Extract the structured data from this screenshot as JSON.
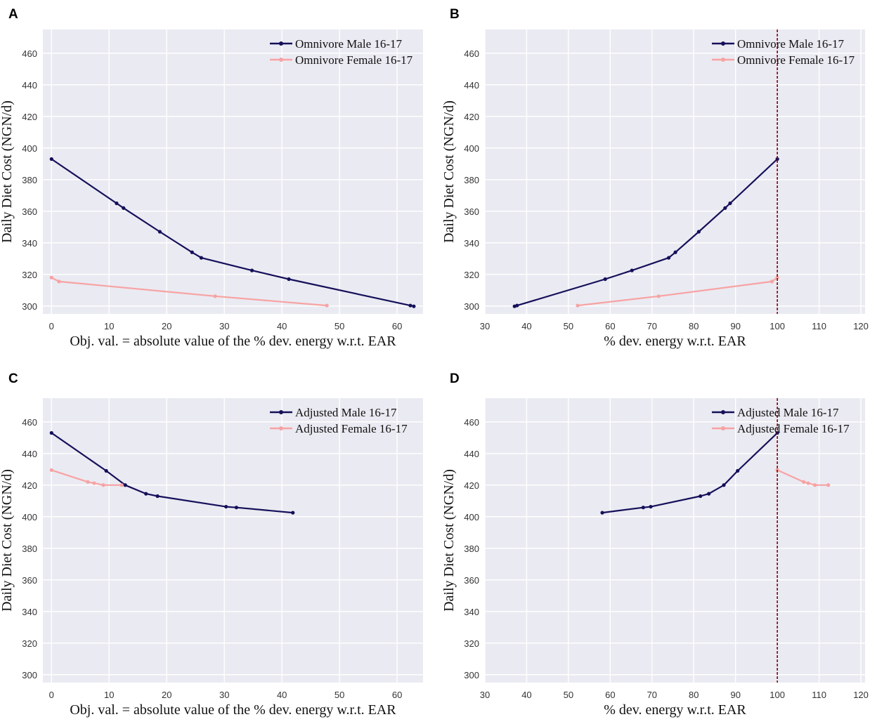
{
  "colors": {
    "background": "#eaeaf2",
    "grid": "#ffffff",
    "male": "#15105a",
    "female": "#f7a3a3",
    "reference_line": "#8b0000"
  },
  "chart_data": [
    {
      "panel": "A",
      "type": "line",
      "xlabel": "Obj. val. = absolute value of the % dev. energy w.r.t. EAR",
      "ylabel": "Daily Diet Cost (NGN/d)",
      "xlim": [
        -1.5,
        64.5
      ],
      "ylim": [
        295,
        475
      ],
      "xticks": [
        0,
        10,
        20,
        30,
        40,
        50,
        60
      ],
      "yticks": [
        300,
        320,
        340,
        360,
        380,
        400,
        420,
        440,
        460
      ],
      "legend": "top-right",
      "vline": null,
      "series": [
        {
          "name": "Omnivore Male 16-17",
          "color": "male",
          "x": [
            0,
            11.3,
            12.5,
            18.8,
            24.4,
            26,
            34.8,
            41.2,
            62.3,
            62.9
          ],
          "y": [
            393,
            365,
            362,
            347,
            334,
            330.5,
            322.5,
            317,
            300.3,
            299.8
          ]
        },
        {
          "name": "Omnivore Female 16-17",
          "color": "female",
          "x": [
            0,
            1.3,
            28.4,
            47.8
          ],
          "y": [
            318,
            315.5,
            306.2,
            300.3
          ]
        }
      ]
    },
    {
      "panel": "B",
      "type": "line",
      "xlabel": "% dev. energy w.r.t. EAR",
      "ylabel": "Daily Diet Cost (NGN/d)",
      "xlim": [
        30,
        121
      ],
      "ylim": [
        295,
        475
      ],
      "xticks": [
        30,
        40,
        50,
        60,
        70,
        80,
        90,
        100,
        110,
        120
      ],
      "yticks": [
        300,
        320,
        340,
        360,
        380,
        400,
        420,
        440,
        460
      ],
      "legend": "top-right",
      "vline": 100,
      "series": [
        {
          "name": "Omnivore Male 16-17",
          "color": "male",
          "x": [
            37.1,
            37.7,
            58.8,
            65.2,
            74,
            75.6,
            81.2,
            87.5,
            88.7,
            100
          ],
          "y": [
            299.8,
            300.3,
            317,
            322.5,
            330.5,
            334,
            347,
            362,
            365,
            393
          ]
        },
        {
          "name": "Omnivore Female 16-17",
          "color": "female",
          "x": [
            52.2,
            71.6,
            98.7,
            100
          ],
          "y": [
            300.3,
            306.2,
            315.5,
            318
          ]
        }
      ]
    },
    {
      "panel": "C",
      "type": "line",
      "xlabel": "Obj. val. = absolute value of the % dev. energy w.r.t. EAR",
      "ylabel": "Daily Diet Cost (NGN/d)",
      "xlim": [
        -1.5,
        64.5
      ],
      "ylim": [
        295,
        475
      ],
      "xticks": [
        0,
        10,
        20,
        30,
        40,
        50,
        60
      ],
      "yticks": [
        300,
        320,
        340,
        360,
        380,
        400,
        420,
        440,
        460
      ],
      "legend": "top-right",
      "vline": null,
      "series": [
        {
          "name": "Adjusted Male 16-17",
          "color": "male",
          "x": [
            0,
            9.5,
            12.8,
            16.4,
            18.4,
            30.3,
            32.1,
            41.9
          ],
          "y": [
            453,
            429,
            420,
            414.5,
            413,
            406.3,
            405.8,
            402.5
          ]
        },
        {
          "name": "Adjusted Female 16-17",
          "color": "female",
          "x": [
            0,
            6.3,
            7.4,
            9,
            12.2
          ],
          "y": [
            429.5,
            422,
            421.2,
            420,
            420
          ]
        }
      ]
    },
    {
      "panel": "D",
      "type": "line",
      "xlabel": "% dev. energy w.r.t. EAR",
      "ylabel": "Daily Diet Cost (NGN/d)",
      "xlim": [
        30,
        121
      ],
      "ylim": [
        295,
        475
      ],
      "xticks": [
        30,
        40,
        50,
        60,
        70,
        80,
        90,
        100,
        110,
        120
      ],
      "yticks": [
        300,
        320,
        340,
        360,
        380,
        400,
        420,
        440,
        460
      ],
      "legend": "top-right",
      "vline": 100,
      "series": [
        {
          "name": "Adjusted Male 16-17",
          "color": "male",
          "x": [
            58.1,
            67.9,
            69.7,
            81.6,
            83.6,
            87.2,
            90.5,
            100
          ],
          "y": [
            402.5,
            405.8,
            406.3,
            413,
            414.5,
            420,
            429,
            453
          ]
        },
        {
          "name": "Adjusted Female 16-17",
          "color": "female",
          "x": [
            100,
            106.3,
            107.4,
            109,
            112.2
          ],
          "y": [
            429.5,
            422,
            421.2,
            420,
            420
          ]
        }
      ]
    }
  ]
}
